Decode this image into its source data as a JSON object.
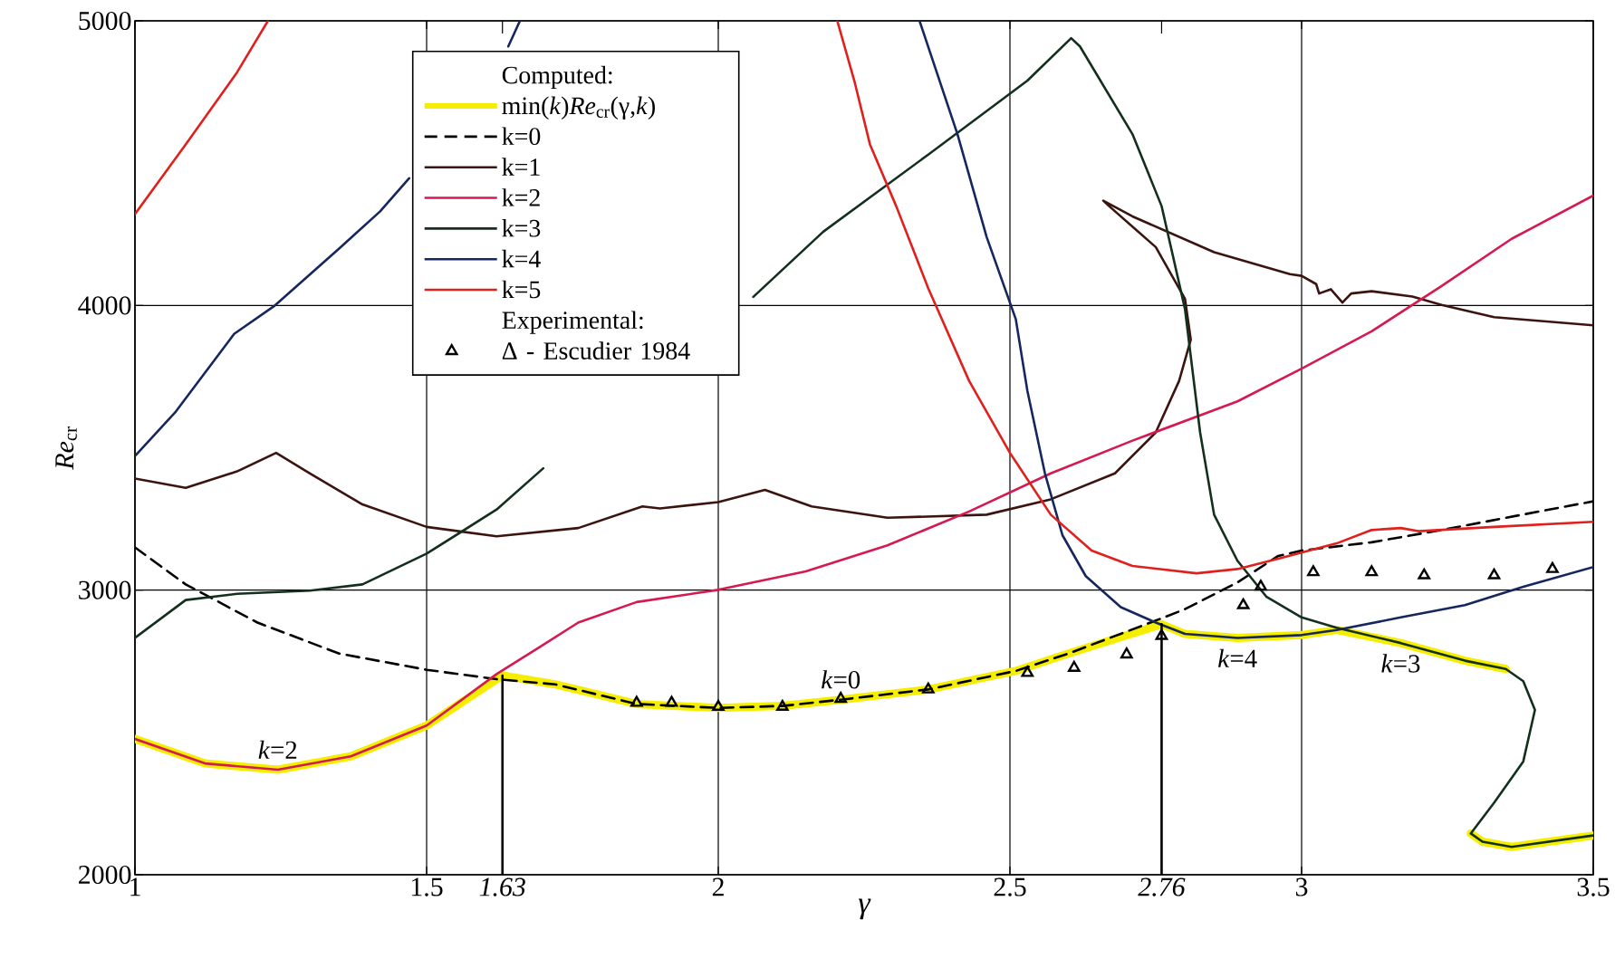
{
  "chart_data": {
    "type": "line",
    "xlabel": "γ",
    "ylabel": "*Re*$_{cr}$",
    "legend_title": "Computed:",
    "xlim": [
      1,
      3.5
    ],
    "ylim": [
      2000,
      5000
    ],
    "xticks": [
      1,
      1.5,
      {
        "value": 1.63,
        "label": "1.63"
      },
      2,
      2.5,
      {
        "value": 2.76,
        "label": "2.76"
      },
      3,
      3.5
    ],
    "yticks": [
      2000,
      3000,
      4000,
      5000
    ],
    "grid": true,
    "legend": "top left",
    "annotations": [
      "Experimental:",
      {
        "text": "*k*=2",
        "x": 1.245,
        "y": 2369
      },
      {
        "text": "*k*=0",
        "x": 2.21,
        "y": 2615
      },
      {
        "text": "*k*=4",
        "x": 2.89,
        "y": 2832
      },
      {
        "text": "*k*=3",
        "x": 3.17,
        "y": 2814
      }
    ],
    "series": [
      {
        "name": "min(*k*)*Re*$_{cr}$(γ,*k*)",
        "color": "#f5ee00",
        "x": [
          1,
          1.12,
          1.245,
          1.37,
          1.5,
          1.63,
          1.72,
          1.86,
          2.0,
          2.11,
          2.21,
          2.36,
          2.51,
          2.6,
          2.76,
          2.8,
          2.89,
          3.0,
          3.06,
          3.17,
          3.28,
          3.35,
          null,
          3.29,
          3.31,
          3.36,
          3.5
        ],
        "values": [
          2477,
          2391,
          2369,
          2416,
          2524,
          2700,
          2669,
          2600,
          2586,
          2593,
          2615,
          2651,
          2716,
          2777,
          2880,
          2846,
          2832,
          2842,
          2860,
          2814,
          2752,
          2723,
          null,
          2145,
          2116,
          2098,
          2138
        ]
      },
      {
        "name": "k=0",
        "color": "#000000",
        "line_style": "dashed",
        "x": [
          1,
          1.087,
          1.21,
          1.35,
          1.5,
          1.62,
          1.72,
          1.86,
          2.0,
          2.11,
          2.21,
          2.36,
          2.51,
          2.6,
          2.75,
          2.8,
          2.89,
          2.96,
          3.0,
          3.12,
          3.24,
          3.35,
          3.5
        ],
        "values": [
          3150,
          3020,
          2886,
          2777,
          2720,
          2687,
          2669,
          2600,
          2586,
          2593,
          2615,
          2651,
          2716,
          2777,
          2893,
          2933,
          3027,
          3120,
          3139,
          3168,
          3211,
          3254,
          3312
        ]
      },
      {
        "name": "k=1",
        "color": "#3b1410",
        "x": [
          1,
          1.087,
          1.175,
          1.242,
          1.3,
          1.39,
          1.5,
          1.62,
          1.76,
          1.87,
          1.9,
          2.0,
          2.08,
          2.16,
          2.29,
          2.46,
          2.57,
          2.68,
          2.75,
          2.79,
          2.81,
          2.8,
          2.75,
          2.67,
          2.66,
          2.71,
          2.85,
          2.98,
          3.0,
          3.025,
          3.03,
          3.05,
          3.07,
          3.085,
          3.12,
          3.19,
          3.24,
          3.33,
          3.5
        ],
        "values": [
          3392,
          3359,
          3417,
          3482,
          3410,
          3301,
          3222,
          3189,
          3218,
          3294,
          3287,
          3309,
          3352,
          3294,
          3254,
          3265,
          3319,
          3410,
          3554,
          3735,
          3880,
          4024,
          4205,
          4349,
          4368,
          4313,
          4187,
          4110,
          4104,
          4075,
          4042,
          4057,
          4010,
          4042,
          4050,
          4031,
          4002,
          3959,
          3930
        ]
      },
      {
        "name": "k=2",
        "color": "#d41a50",
        "x": [
          1,
          1.12,
          1.245,
          1.37,
          1.5,
          1.62,
          1.69,
          1.76,
          1.86,
          2.0,
          2.15,
          2.29,
          2.43,
          2.57,
          2.71,
          2.89,
          3.0,
          3.12,
          3.24,
          3.36,
          3.5
        ],
        "values": [
          2477,
          2391,
          2369,
          2416,
          2524,
          2705,
          2795,
          2886,
          2958,
          3001,
          3066,
          3157,
          3276,
          3410,
          3525,
          3663,
          3778,
          3909,
          4068,
          4234,
          4386
        ]
      },
      {
        "name": "k=3",
        "color": "#13301e",
        "x": [
          1,
          1.087,
          1.175,
          1.3,
          1.39,
          1.5,
          1.62,
          1.7,
          null,
          2.06,
          2.18,
          2.36,
          2.53,
          2.605,
          2.62,
          2.71,
          2.76,
          2.8,
          2.826,
          2.85,
          2.89,
          2.94,
          3.0,
          3.06,
          3.17,
          3.28,
          3.35,
          3.38,
          3.4,
          3.38,
          3.33,
          3.29,
          3.31,
          3.36,
          3.5
        ],
        "values": [
          2832,
          2965,
          2987,
          2998,
          3020,
          3128,
          3283,
          3428,
          null,
          4030,
          4259,
          4530,
          4790,
          4939,
          4910,
          4602,
          4349,
          3988,
          3554,
          3265,
          3103,
          2976,
          2904,
          2868,
          2814,
          2752,
          2723,
          2680,
          2579,
          2398,
          2253,
          2145,
          2116,
          2098,
          2138
        ]
      },
      {
        "name": "k=4",
        "color": "#16265e",
        "x": [
          1,
          1.07,
          1.17,
          1.24,
          1.35,
          1.42,
          1.47,
          null,
          1.64,
          1.66,
          null,
          2.345,
          2.41,
          2.46,
          2.51,
          2.53,
          2.56,
          2.59,
          2.63,
          2.69,
          2.75,
          2.8,
          2.89,
          3.0,
          3.06,
          3.17,
          3.28,
          3.38,
          3.5
        ],
        "values": [
          3471,
          3627,
          3900,
          4000,
          4200,
          4330,
          4447,
          null,
          4910,
          5000,
          null,
          5000,
          4602,
          4241,
          3952,
          3699,
          3410,
          3193,
          3049,
          2940,
          2886,
          2846,
          2832,
          2842,
          2860,
          2904,
          2947,
          3012,
          3081
        ]
      },
      {
        "name": "k=5",
        "color": "#e0201c",
        "x": [
          1,
          1.087,
          1.175,
          1.228,
          null,
          2.204,
          2.234,
          2.26,
          2.305,
          2.36,
          2.43,
          2.5,
          2.57,
          2.64,
          2.71,
          2.82,
          2.89,
          2.96,
          3.06,
          3.12,
          3.17,
          3.2,
          3.33,
          3.5
        ],
        "values": [
          4321,
          4566,
          4819,
          5000,
          null,
          5000,
          4783,
          4566,
          4349,
          4060,
          3735,
          3482,
          3265,
          3139,
          3085,
          3059,
          3074,
          3110,
          3164,
          3211,
          3218,
          3207,
          3222,
          3240
        ]
      },
      {
        "color": "#000000",
        "x": [
          1.63,
          1.63
        ],
        "values": [
          2000,
          2700
        ]
      },
      {
        "color": "#000000",
        "x": [
          2.76,
          2.76
        ],
        "values": [
          2000,
          2880
        ]
      },
      {
        "name": "Δ - Escudier 1984",
        "type": "scatter",
        "marker": "triangle",
        "color": "#000000",
        "x": [
          1.86,
          1.92,
          2.0,
          2.11,
          2.21,
          2.36,
          2.53,
          2.61,
          2.7,
          2.76,
          2.9,
          2.93,
          3.02,
          3.12,
          3.21,
          3.33,
          3.43
        ],
        "values": [
          2604,
          2604,
          2590,
          2590,
          2618,
          2651,
          2709,
          2727,
          2774,
          2839,
          2947,
          3012,
          3063,
          3063,
          3052,
          3052,
          3074
        ]
      }
    ]
  }
}
